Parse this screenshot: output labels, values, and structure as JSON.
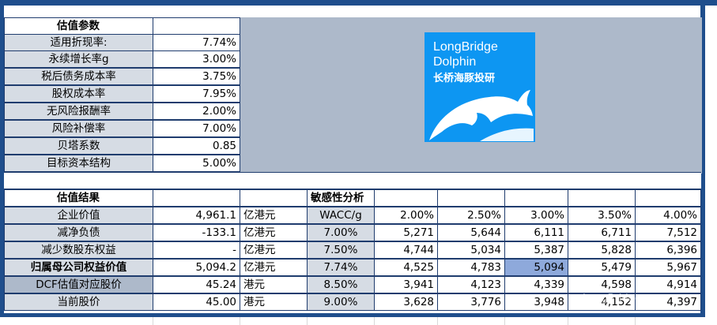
{
  "valuation_params": {
    "header": "估值参数",
    "rows": [
      {
        "label": "适用折现率:",
        "value": "7.74%"
      },
      {
        "label": "永续增长率g",
        "value": "3.00%"
      },
      {
        "label": "税后债务成本率",
        "value": "3.75%"
      },
      {
        "label": "股权成本率",
        "value": "7.95%"
      },
      {
        "label": "无风险报酬率",
        "value": "2.00%"
      },
      {
        "label": "风险补偿率",
        "value": "7.00%"
      },
      {
        "label": "贝塔系数",
        "value": "0.85"
      },
      {
        "label": "目标资本结构",
        "value": "5.00%"
      }
    ]
  },
  "logo": {
    "line1": "LongBridge",
    "line2": "Dolphin",
    "line3": "长桥海豚投研",
    "color": "#0d96f2"
  },
  "valuation_results": {
    "header": "估值结果",
    "rows": [
      {
        "label": "企业价值",
        "value": "4,961.1",
        "unit": "亿港元"
      },
      {
        "label": "减净负债",
        "value": "-133.1",
        "unit": "亿港元"
      },
      {
        "label": "减少数股东权益",
        "value": "-",
        "unit": "亿港元"
      },
      {
        "label": "归属母公司权益价值",
        "value": "5,094.2",
        "unit": "亿港元"
      },
      {
        "label": "DCF估值对应股价",
        "value": "45.24",
        "unit": "港元"
      },
      {
        "label": "当前股价",
        "value": "45.00",
        "unit": "港元"
      }
    ]
  },
  "sensitivity": {
    "header": "敏感性分析",
    "corner": "WACC/g",
    "g_values": [
      "2.00%",
      "2.50%",
      "3.00%",
      "3.50%",
      "4.00%"
    ],
    "rows": [
      {
        "wacc": "7.00%",
        "values": [
          "5,271",
          "5,644",
          "6,111",
          "6,711",
          "7,512"
        ]
      },
      {
        "wacc": "7.50%",
        "values": [
          "4,744",
          "5,034",
          "5,387",
          "5,828",
          "6,396"
        ]
      },
      {
        "wacc": "7.74%",
        "values": [
          "4,525",
          "4,783",
          "5,094",
          "5,479",
          "5,967"
        ]
      },
      {
        "wacc": "8.50%",
        "values": [
          "3,941",
          "4,123",
          "4,339",
          "4,598",
          "4,914"
        ]
      },
      {
        "wacc": "9.00%",
        "values": [
          "3,628",
          "3,776",
          "3,948",
          "4,152",
          "4,397"
        ]
      }
    ],
    "highlight_color": "#8ea9db"
  },
  "watermark": "LongBridge"
}
